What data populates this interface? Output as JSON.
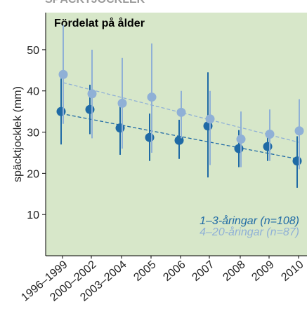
{
  "chart_data": {
    "type": "errorbar-scatter",
    "title": "SPÄCKTJOCKLEK",
    "subtitle": "Fördelat på ålder",
    "y_label": "späcktjocklek (mm)",
    "categories": [
      "1996–1999",
      "2000–2002",
      "2003–2004",
      "2005",
      "2006",
      "2007",
      "2008",
      "2009",
      "2010"
    ],
    "ylim": [
      0,
      59
    ],
    "yticks": [
      10,
      20,
      30,
      40,
      50
    ],
    "background": "#d7e7c9",
    "series": [
      {
        "name": "1–3-åringar (n=108)",
        "color": "#1f6aa5",
        "values": [
          35,
          35.5,
          31,
          28.7,
          28,
          31.5,
          26,
          26.5,
          23
        ],
        "low": [
          27,
          29.5,
          24.5,
          23,
          23.5,
          19,
          21.5,
          23,
          16.5
        ],
        "high": [
          43,
          41.5,
          37,
          34.5,
          33,
          44.5,
          30.5,
          30,
          29
        ],
        "trend": [
          34.5,
          23.5
        ]
      },
      {
        "name": "4–20-åringar (n=87)",
        "color": "#8fb0d6",
        "values": [
          44,
          39.3,
          37,
          38.5,
          34.8,
          33.2,
          28.3,
          29.5,
          30.3
        ],
        "low": [
          32,
          28.5,
          26,
          25,
          28.5,
          22,
          21.5,
          23,
          21
        ],
        "high": [
          56,
          50,
          48,
          51.5,
          40,
          40,
          35,
          35.5,
          38
        ],
        "trend": [
          42,
          27.5
        ]
      }
    ]
  }
}
